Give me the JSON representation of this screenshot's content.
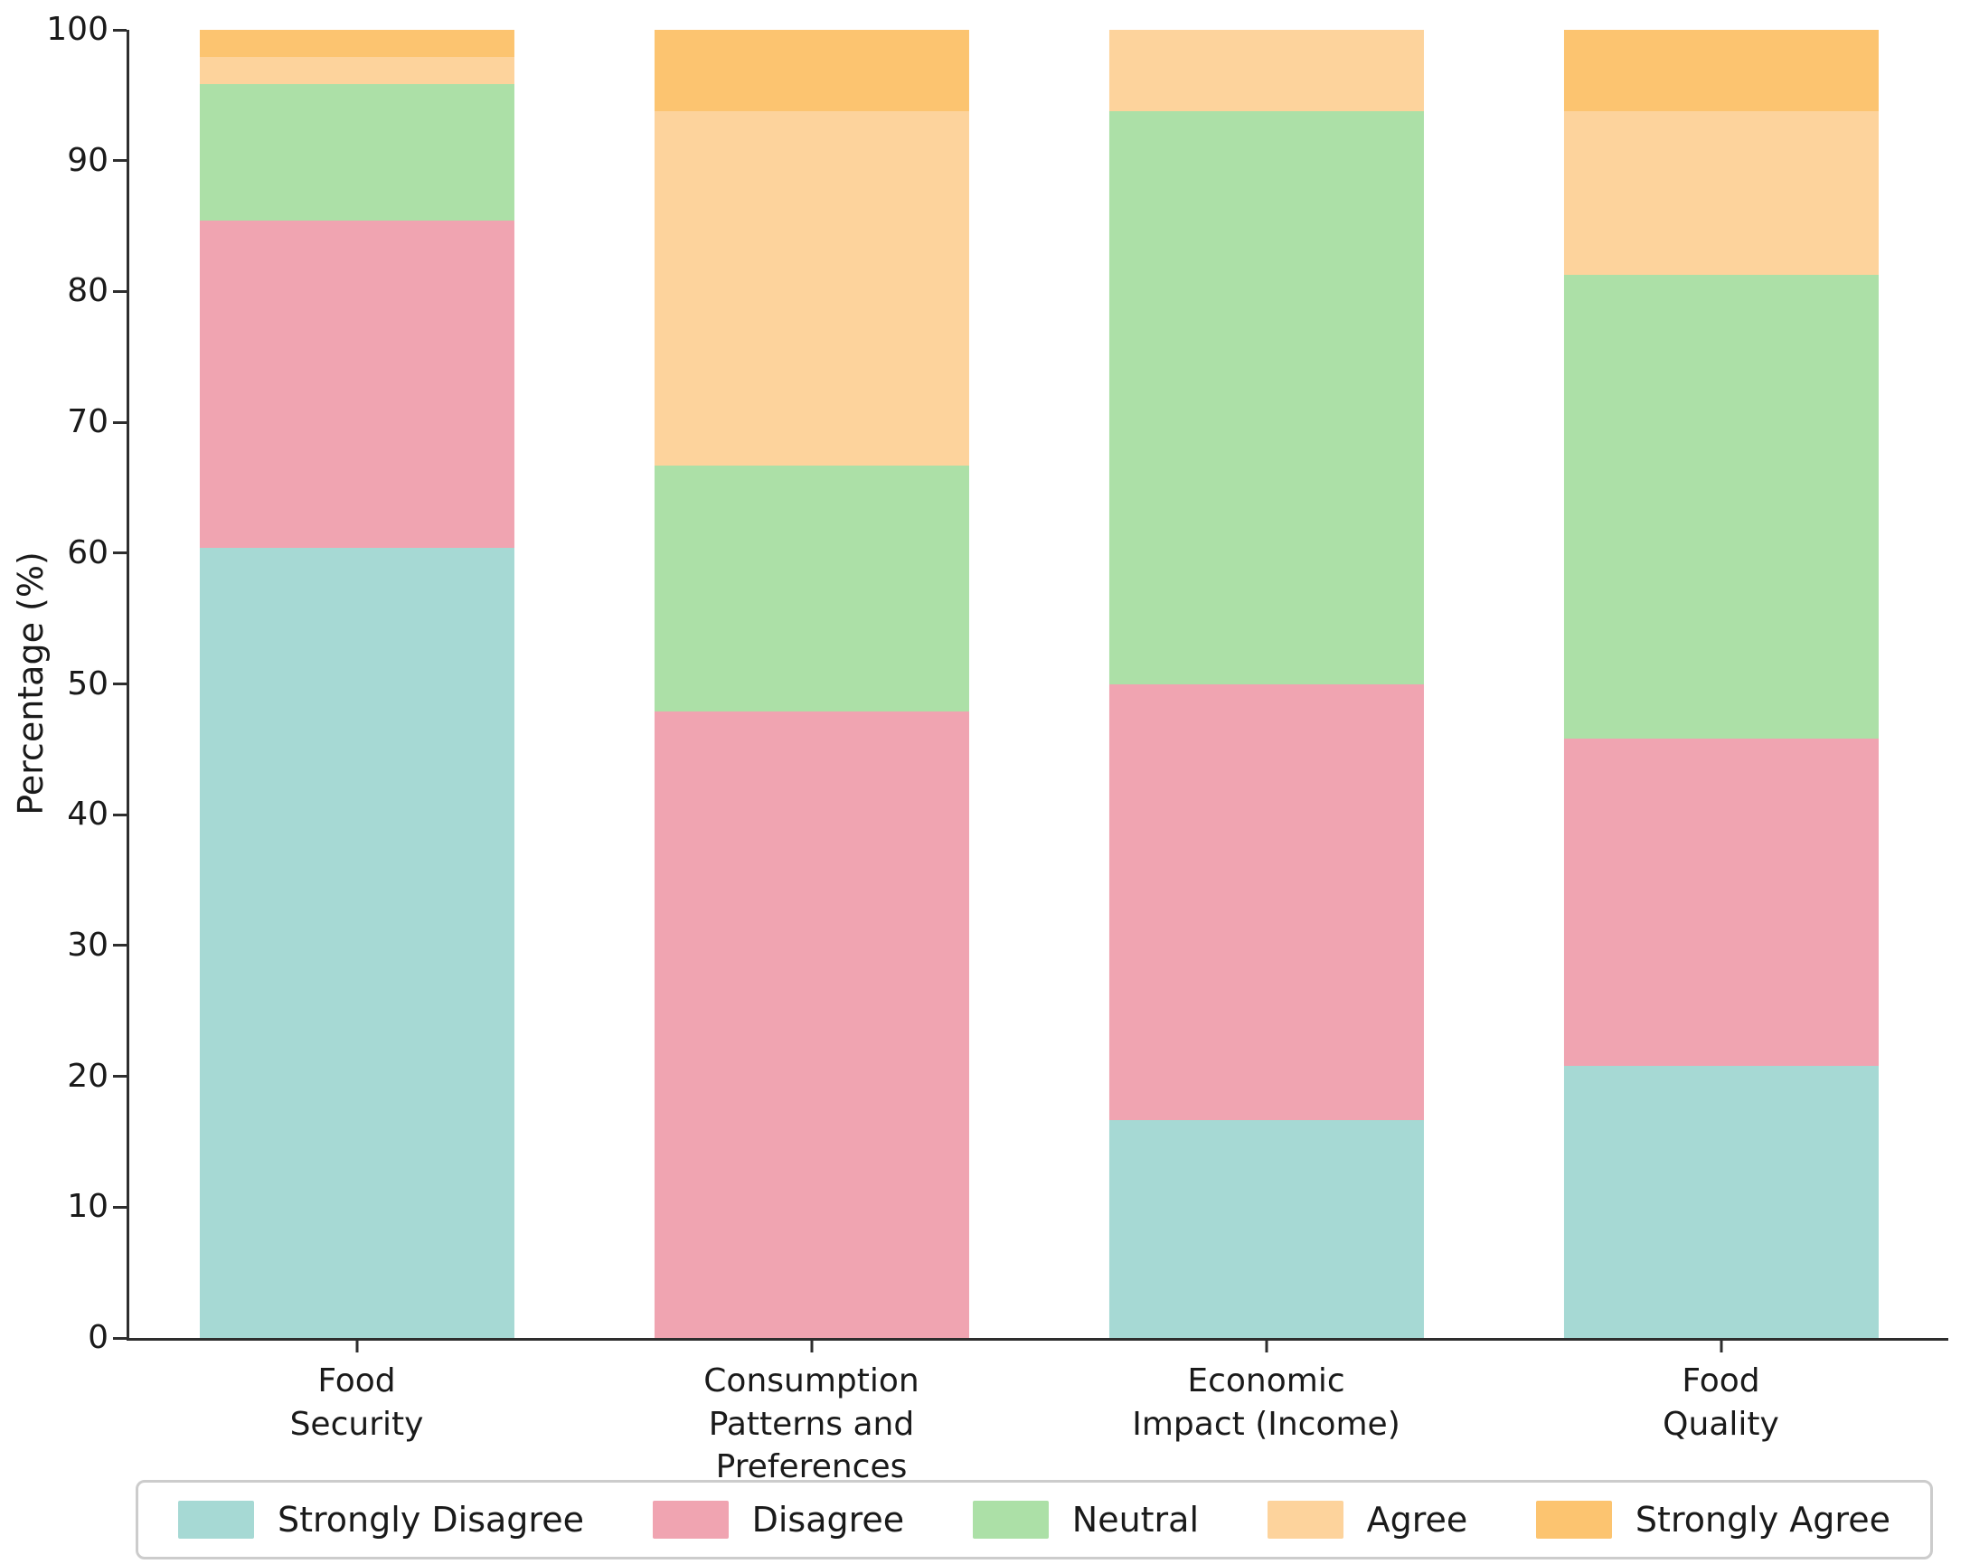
{
  "chart_data": {
    "type": "bar",
    "stacked": true,
    "title": "",
    "xlabel": "",
    "ylabel": "Percentage (%)",
    "ylim": [
      0,
      100
    ],
    "yticks": [
      0,
      10,
      20,
      30,
      40,
      50,
      60,
      70,
      80,
      90,
      100
    ],
    "grid": false,
    "legend_position": "bottom",
    "categories": [
      "Food\nSecurity",
      "Consumption\nPatterns and\nPreferences",
      "Economic\nImpact (Income)",
      "Food\nQuality"
    ],
    "series": [
      {
        "name": "Strongly Disagree",
        "color": "#a6d9d4",
        "values": [
          60.42,
          0,
          16.67,
          20.83
        ]
      },
      {
        "name": "Disagree",
        "color": "#f0a4b1",
        "values": [
          25.0,
          47.92,
          33.33,
          25.0
        ]
      },
      {
        "name": "Neutral",
        "color": "#ace0a7",
        "values": [
          10.42,
          18.75,
          43.75,
          35.42
        ]
      },
      {
        "name": "Agree",
        "color": "#fdd39c",
        "values": [
          2.08,
          27.08,
          6.25,
          12.5
        ]
      },
      {
        "name": "Strongly Agree",
        "color": "#fcc470",
        "values": [
          2.08,
          6.25,
          0,
          6.25
        ]
      }
    ],
    "colors": {
      "axis": "#2e2e2e",
      "text": "#1a1a1a",
      "legend_border": "#cccccc"
    }
  }
}
